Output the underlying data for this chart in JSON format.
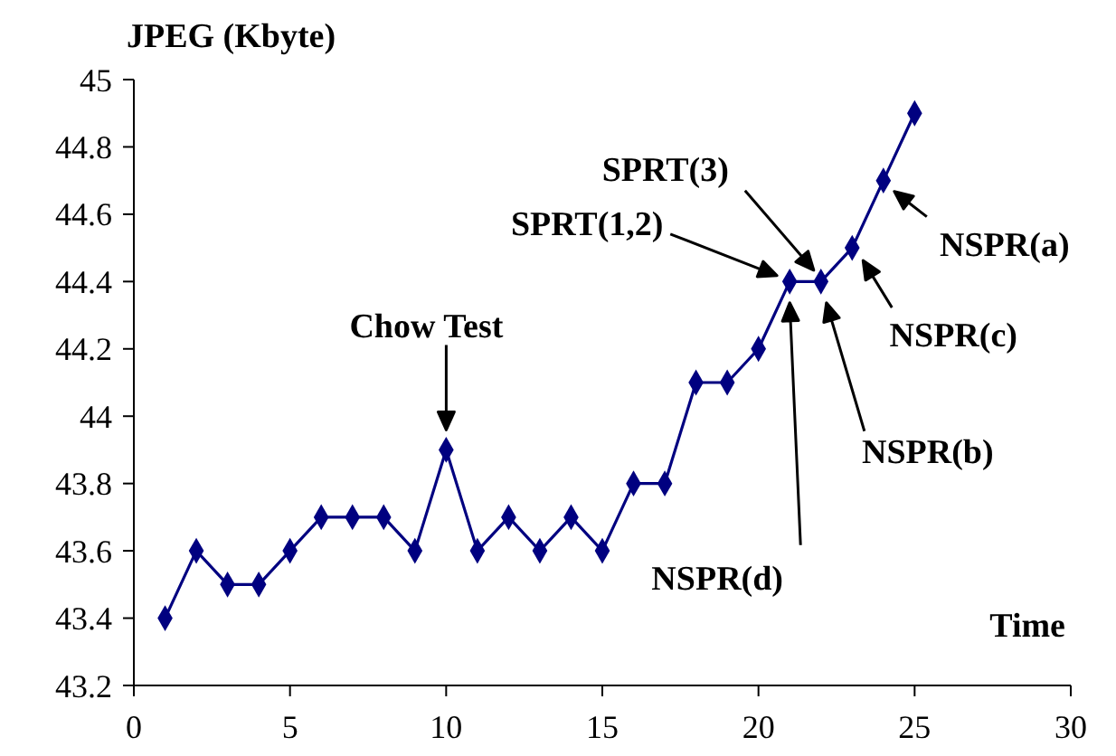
{
  "chart_data": {
    "type": "line",
    "ylabel": "JPEG (Kbyte)",
    "xlabel": "Time",
    "x": [
      1,
      2,
      3,
      4,
      5,
      6,
      7,
      8,
      9,
      10,
      11,
      12,
      13,
      14,
      15,
      16,
      17,
      18,
      19,
      20,
      21,
      22,
      23,
      24,
      25
    ],
    "series": [
      {
        "color": "#000080",
        "values": [
          43.4,
          43.6,
          43.5,
          43.5,
          43.6,
          43.7,
          43.7,
          43.7,
          43.6,
          43.9,
          43.6,
          43.7,
          43.6,
          43.7,
          43.6,
          43.8,
          43.8,
          44.1,
          44.1,
          44.2,
          44.4,
          44.4,
          44.5,
          44.7,
          44.9
        ]
      }
    ],
    "xlim": [
      0,
      30
    ],
    "xticks": [
      0,
      5,
      10,
      15,
      20,
      25,
      30
    ],
    "ylim": [
      43.2,
      45
    ],
    "yticks": [
      43.2,
      43.4,
      43.6,
      43.8,
      44,
      44.2,
      44.4,
      44.6,
      44.8,
      45
    ],
    "marker": "diamond",
    "line_style": "solid",
    "grid": false,
    "annotations": [
      "Chow Test",
      "SPRT(1,2)",
      "SPRT(3)",
      "NSPR(d)",
      "NSPR(b)",
      {
        "text": "NSPR(c)",
        "x": 23,
        "y": 44.5
      },
      {
        "text": "NSPR(a)",
        "x": 24,
        "y": 44.7
      }
    ]
  }
}
